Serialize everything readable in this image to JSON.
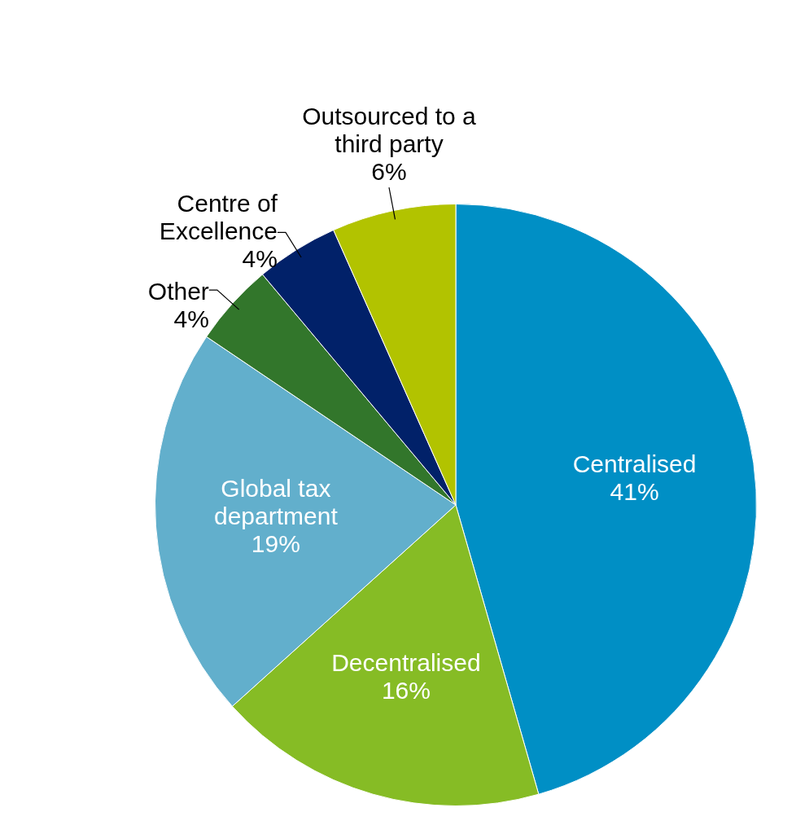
{
  "chart_data": {
    "type": "pie",
    "categories": [
      "Centralised",
      "Decentralised",
      "Global tax department",
      "Other",
      "Centre of Excellence",
      "Outsourced to a third party"
    ],
    "values": [
      41,
      16,
      19,
      4,
      4,
      6
    ],
    "colors": [
      "#008fc5",
      "#86bc25",
      "#62afcc",
      "#32762b",
      "#012169",
      "#b2c300"
    ],
    "value_labels": [
      "41%",
      "16%",
      "19%",
      "4%",
      "4%",
      "6%"
    ]
  }
}
